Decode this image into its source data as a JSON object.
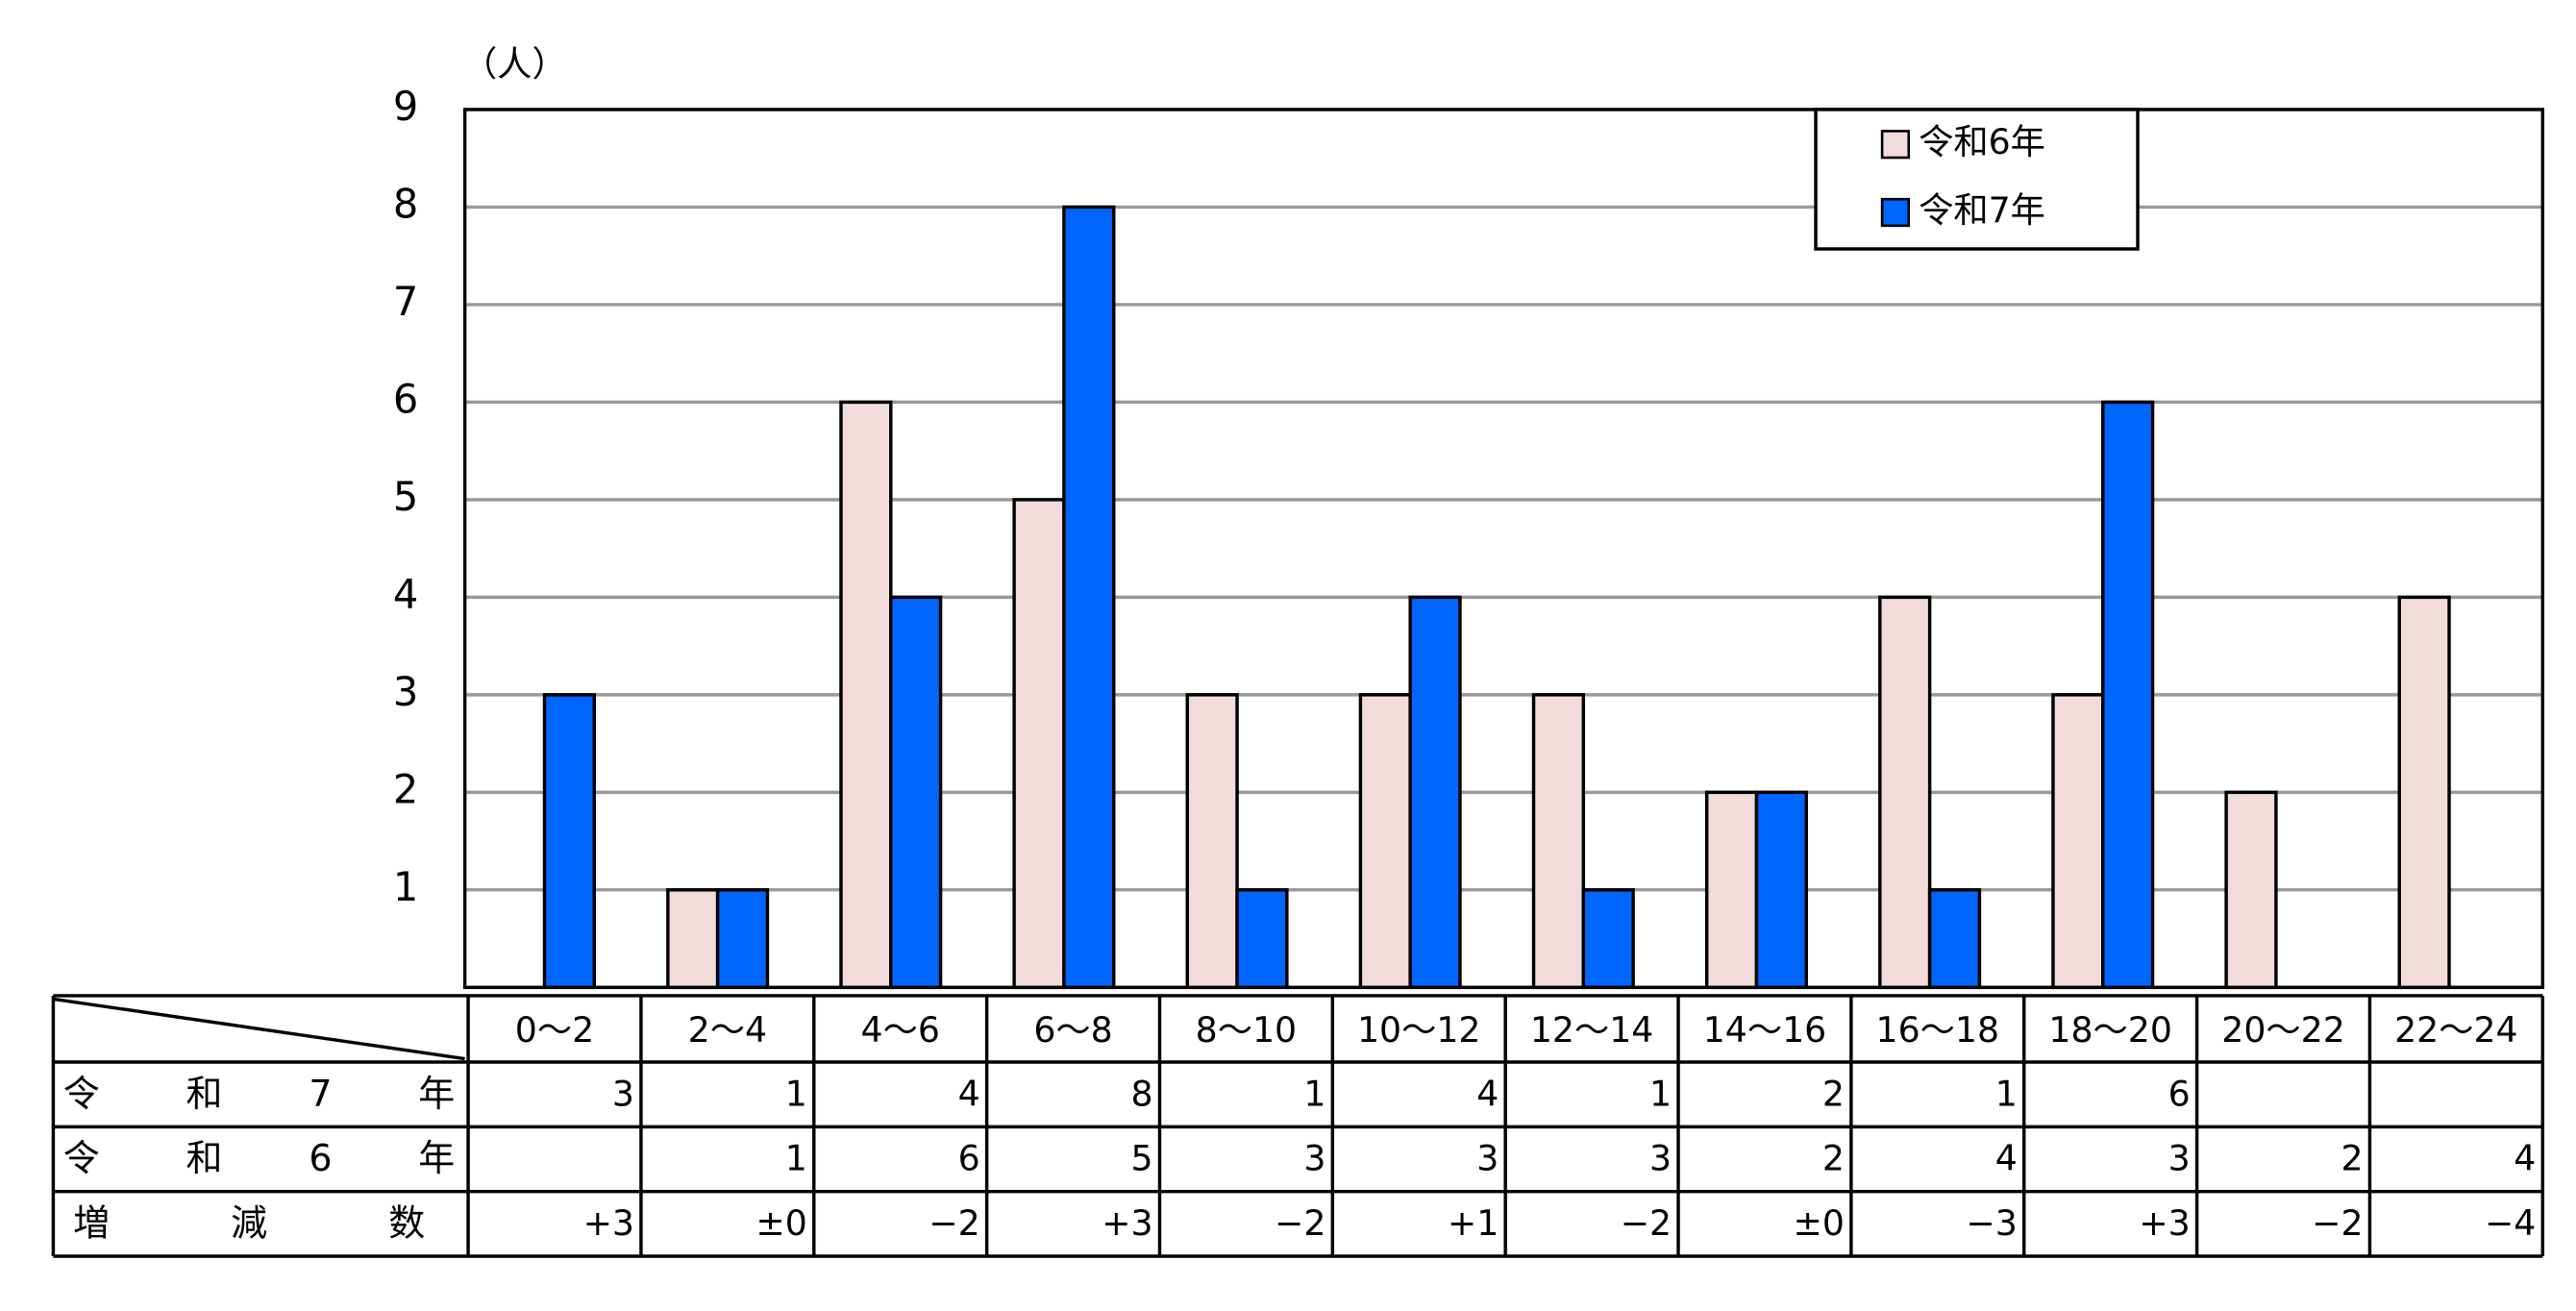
{
  "chart_data": {
    "type": "bar",
    "unit_label": "（人）",
    "categories": [
      "0～2",
      "2～4",
      "4～6",
      "6～8",
      "8～10",
      "10～12",
      "12～14",
      "14～16",
      "16～18",
      "18～20",
      "20～22",
      "22～24"
    ],
    "series": [
      {
        "name": "令和6年",
        "color": "#f2dcdb",
        "values": [
          null,
          1,
          6,
          5,
          3,
          3,
          3,
          2,
          4,
          3,
          2,
          4
        ]
      },
      {
        "name": "令和7年",
        "color": "#0066ff",
        "values": [
          3,
          1,
          4,
          8,
          1,
          4,
          1,
          2,
          1,
          6,
          null,
          null
        ]
      }
    ],
    "ylim": [
      0,
      9
    ],
    "yticks": [
      1,
      2,
      3,
      4,
      5,
      6,
      7,
      8,
      9
    ],
    "grid": true,
    "legend": "upper-right"
  },
  "table": {
    "change_label": "増減数",
    "change": [
      "+3",
      "±0",
      "−2",
      "+3",
      "−2",
      "+1",
      "−2",
      "±0",
      "−3",
      "+3",
      "−2",
      "−4"
    ]
  }
}
